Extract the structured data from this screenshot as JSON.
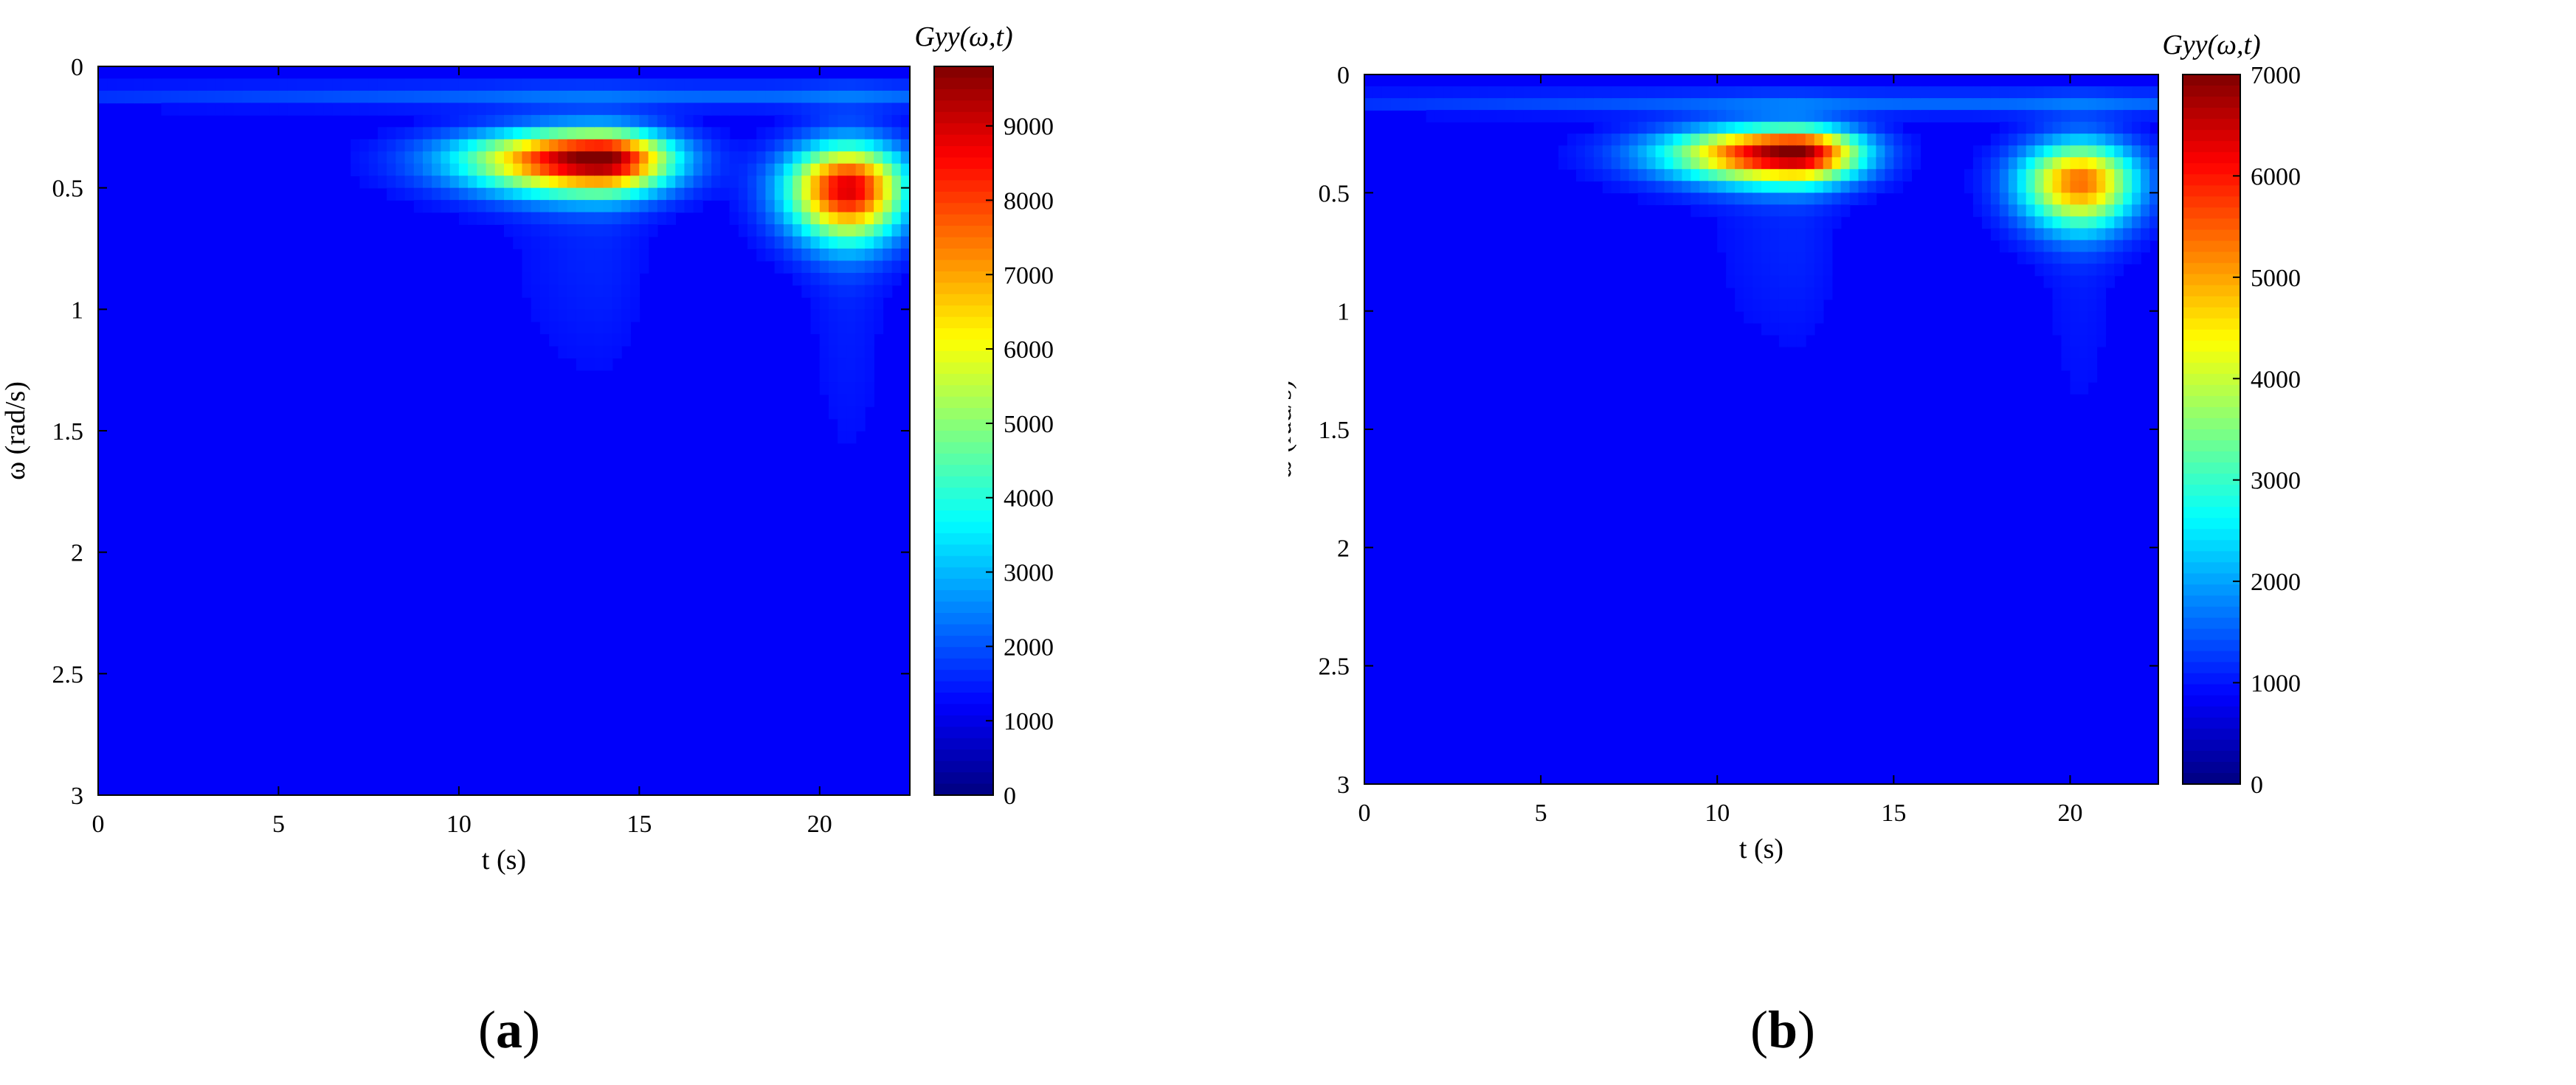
{
  "chart_data": [
    {
      "type": "heatmap",
      "panel_label": "a",
      "xlabel": "t (s)",
      "ylabel": "ω (rad/s)",
      "colorbar_label": "Gyy(ω,t)",
      "xlim": [
        0,
        22.5
      ],
      "ylim": [
        0,
        3
      ],
      "y_reversed": true,
      "xticks": [
        0,
        5,
        10,
        15,
        20
      ],
      "yticks": [
        0,
        0.5,
        1,
        1.5,
        2,
        2.5,
        3
      ],
      "colorbar_range": [
        0,
        9800
      ],
      "colorbar_ticks": [
        0,
        1000,
        2000,
        3000,
        4000,
        5000,
        6000,
        7000,
        8000,
        9000
      ],
      "colormap": "jet",
      "peaks": [
        {
          "t": 13.9,
          "omega": 0.38,
          "value": 9800,
          "t_spread_left": 2.5,
          "t_spread_right": 1.4,
          "omega_spread": 0.1
        },
        {
          "t": 20.8,
          "omega": 0.5,
          "value": 8500,
          "t_spread_left": 1.2,
          "t_spread_right": 1.1,
          "omega_spread": 0.15
        }
      ]
    },
    {
      "type": "heatmap",
      "panel_label": "b",
      "xlabel": "t (s)",
      "ylabel": "ω (rad/s)",
      "colorbar_label": "Gyy(ω,t)",
      "xlim": [
        0,
        22.5
      ],
      "ylim": [
        0,
        3
      ],
      "y_reversed": true,
      "xticks": [
        0,
        5,
        10,
        15,
        20
      ],
      "yticks": [
        0,
        0.5,
        1,
        1.5,
        2,
        2.5,
        3
      ],
      "colorbar_range": [
        0,
        7000
      ],
      "colorbar_ticks": [
        0,
        1000,
        2000,
        3000,
        4000,
        5000,
        6000,
        7000
      ],
      "colormap": "jet",
      "peaks": [
        {
          "t": 12.2,
          "omega": 0.33,
          "value": 6900,
          "t_spread_left": 2.4,
          "t_spread_right": 1.3,
          "omega_spread": 0.09
        },
        {
          "t": 20.3,
          "omega": 0.45,
          "value": 5000,
          "t_spread_left": 1.2,
          "t_spread_right": 1.1,
          "omega_spread": 0.14
        }
      ]
    }
  ]
}
